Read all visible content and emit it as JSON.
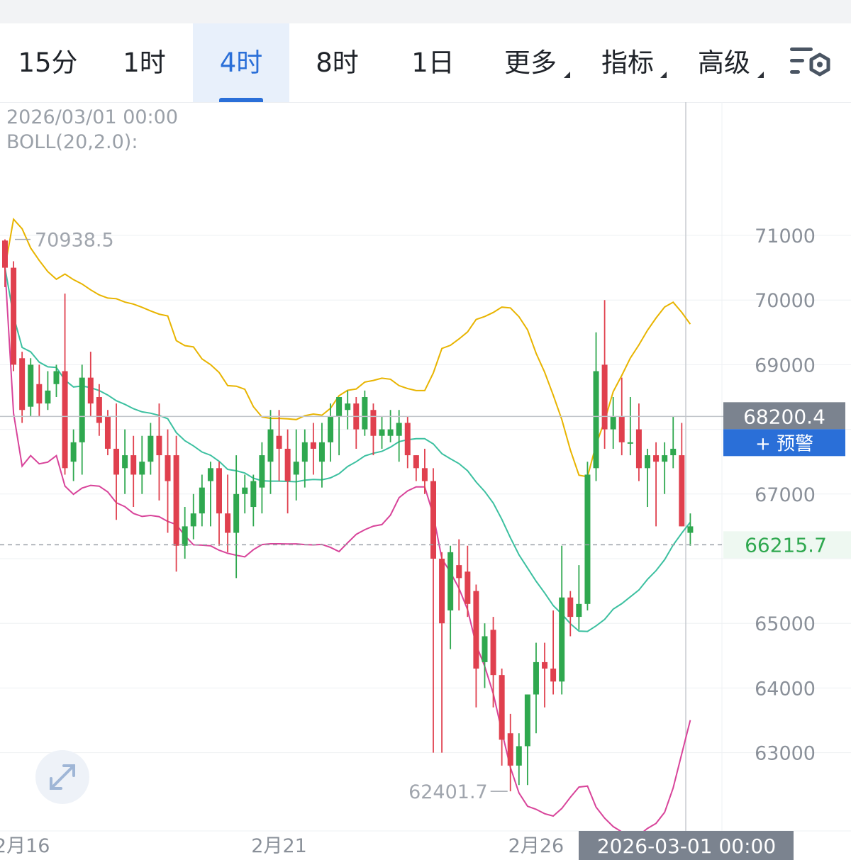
{
  "tabs": [
    {
      "label": "15分",
      "active": false
    },
    {
      "label": "1时",
      "active": false
    },
    {
      "label": "4时",
      "active": true
    },
    {
      "label": "8时",
      "active": false
    },
    {
      "label": "1日",
      "active": false
    },
    {
      "label": "更多",
      "active": false,
      "dropdown": true
    },
    {
      "label": "指标",
      "active": false,
      "dropdown": true
    },
    {
      "label": "高级",
      "active": false,
      "dropdown": true
    }
  ],
  "settings_icon": "chart-settings-icon",
  "info": {
    "datetime": "2026/03/01 00:00",
    "indicator": "BOLL(20,2.0):"
  },
  "colors": {
    "up": "#2fa84f",
    "down": "#e0404e",
    "boll_upper": "#e8b400",
    "boll_mid": "#3cc0a0",
    "boll_lower": "#d8449a",
    "accent": "#2a6fd8"
  },
  "chart_data": {
    "type": "candlestick",
    "interval": "4时",
    "indicator": "BOLL(20,2.0)",
    "y_axis": {
      "ticks": [
        71000,
        70000,
        69000,
        67000,
        65000,
        64000,
        63000
      ]
    },
    "x_axis": {
      "ticks": [
        "2月16",
        "2月21",
        "2月26"
      ]
    },
    "annotations": {
      "high": "70938.5",
      "low": "62401.7"
    },
    "crosshair": {
      "price": "68200.4",
      "time": "2026-03-01 00:00",
      "alert_label": "+ 预警"
    },
    "last_price": "66215.7",
    "candles": [
      [
        70920,
        70500,
        70938.5,
        70200
      ],
      [
        70500,
        69000,
        70600,
        68900
      ],
      [
        69100,
        68300,
        69200,
        68100
      ],
      [
        68350,
        69000,
        69100,
        68200
      ],
      [
        68700,
        68400,
        69000,
        68200
      ],
      [
        68400,
        68600,
        68900,
        68300
      ],
      [
        68700,
        68900,
        69000,
        68500
      ],
      [
        68900,
        67400,
        70100,
        67300
      ],
      [
        67500,
        67800,
        68000,
        67200
      ],
      [
        67800,
        68800,
        69000,
        67300
      ],
      [
        68800,
        68400,
        69200,
        68200
      ],
      [
        68500,
        68100,
        68700,
        67900
      ],
      [
        68200,
        67700,
        68300,
        67600
      ],
      [
        67700,
        67300,
        68400,
        66600
      ],
      [
        67400,
        67600,
        68000,
        67000
      ],
      [
        67600,
        67300,
        67900,
        66800
      ],
      [
        67300,
        67500,
        67900,
        67000
      ],
      [
        67500,
        67900,
        68100,
        67300
      ],
      [
        67900,
        67600,
        68400,
        66900
      ],
      [
        67600,
        67200,
        68000,
        66400
      ],
      [
        67600,
        66200,
        67900,
        65800
      ],
      [
        66200,
        66500,
        66800,
        66000
      ],
      [
        66500,
        66700,
        67000,
        66300
      ],
      [
        66700,
        67100,
        67300,
        66500
      ],
      [
        67200,
        67400,
        67500,
        66500
      ],
      [
        67400,
        66700,
        67500,
        66200
      ],
      [
        66700,
        66400,
        67300,
        66100
      ],
      [
        66400,
        67000,
        67600,
        65700
      ],
      [
        67000,
        67100,
        67300,
        66700
      ],
      [
        66800,
        67200,
        67300,
        66500
      ],
      [
        67100,
        67600,
        67800,
        66700
      ],
      [
        67500,
        68000,
        68300,
        67000
      ],
      [
        67900,
        67700,
        68300,
        67200
      ],
      [
        67700,
        67200,
        68000,
        66700
      ],
      [
        67300,
        67500,
        68000,
        66900
      ],
      [
        67500,
        67800,
        68000,
        67100
      ],
      [
        67800,
        67700,
        68100,
        67300
      ],
      [
        67500,
        67800,
        68100,
        67100
      ],
      [
        67800,
        68200,
        68400,
        67500
      ],
      [
        68200,
        68500,
        68500,
        67600
      ],
      [
        68300,
        68400,
        68600,
        68000
      ],
      [
        68400,
        68000,
        68500,
        67700
      ],
      [
        68000,
        68500,
        68600,
        67900
      ],
      [
        68300,
        67900,
        68400,
        67600
      ],
      [
        67900,
        68000,
        68200,
        67700
      ],
      [
        67900,
        68000,
        68300,
        67800
      ],
      [
        67900,
        68100,
        68300,
        67500
      ],
      [
        68100,
        67600,
        68200,
        67400
      ],
      [
        67600,
        67400,
        67600,
        67200
      ],
      [
        67400,
        67200,
        67700,
        67000
      ],
      [
        67200,
        66000,
        67400,
        63000
      ],
      [
        66000,
        65000,
        66100,
        63000
      ],
      [
        65200,
        66100,
        66200,
        64600
      ],
      [
        65900,
        65700,
        66300,
        65200
      ],
      [
        65800,
        65300,
        66200,
        65100
      ],
      [
        65500,
        64300,
        65600,
        63700
      ],
      [
        64400,
        64800,
        65000,
        64000
      ],
      [
        64900,
        64200,
        65100,
        63700
      ],
      [
        64200,
        63200,
        64300,
        62800
      ],
      [
        63300,
        62800,
        63600,
        62401.7
      ],
      [
        62800,
        63100,
        63300,
        62500
      ],
      [
        63100,
        63900,
        63900,
        62500
      ],
      [
        63900,
        64400,
        64700,
        63300
      ],
      [
        64400,
        64300,
        64700,
        63700
      ],
      [
        64300,
        64100,
        65200,
        63900
      ],
      [
        64100,
        65400,
        66200,
        63900
      ],
      [
        65400,
        65100,
        65500,
        64800
      ],
      [
        65100,
        65300,
        65900,
        64900
      ],
      [
        65300,
        67300,
        67500,
        65200
      ],
      [
        67400,
        68900,
        69500,
        67200
      ],
      [
        69000,
        68000,
        70000,
        67700
      ],
      [
        68000,
        68200,
        68500,
        67700
      ],
      [
        68200,
        67800,
        68800,
        67600
      ],
      [
        67800,
        67800,
        68500,
        67600
      ],
      [
        68000,
        67400,
        68400,
        67200
      ],
      [
        67400,
        67600,
        67700,
        66800
      ],
      [
        67600,
        67500,
        67800,
        66500
      ],
      [
        67500,
        67600,
        67800,
        67000
      ],
      [
        67600,
        67700,
        68200,
        67400
      ],
      [
        67600,
        66500,
        68100,
        66500
      ],
      [
        66400,
        66500,
        66700,
        66200
      ]
    ]
  }
}
